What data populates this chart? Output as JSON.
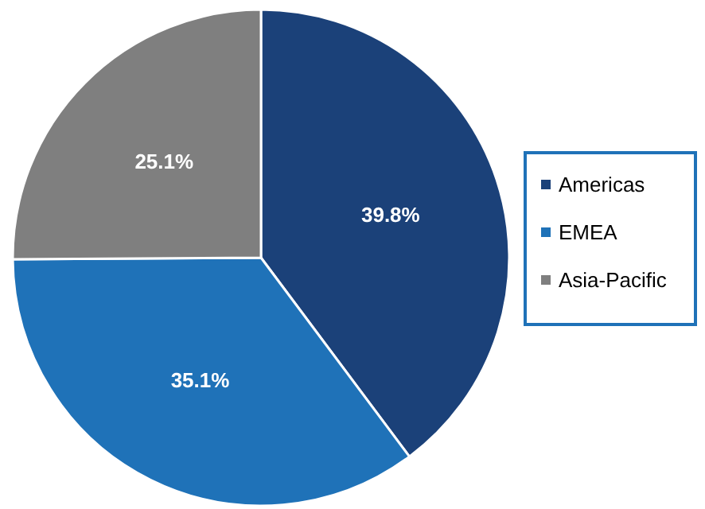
{
  "chart_data": {
    "type": "pie",
    "categories": [
      "Americas",
      "EMEA",
      "Asia-Pacific"
    ],
    "values": [
      39.8,
      35.1,
      25.1
    ],
    "colors": [
      "#1b4179",
      "#1f72b8",
      "#7f7f7f"
    ],
    "value_labels": [
      "39.8%",
      "35.1%",
      "25.1%"
    ],
    "legend": "right"
  }
}
